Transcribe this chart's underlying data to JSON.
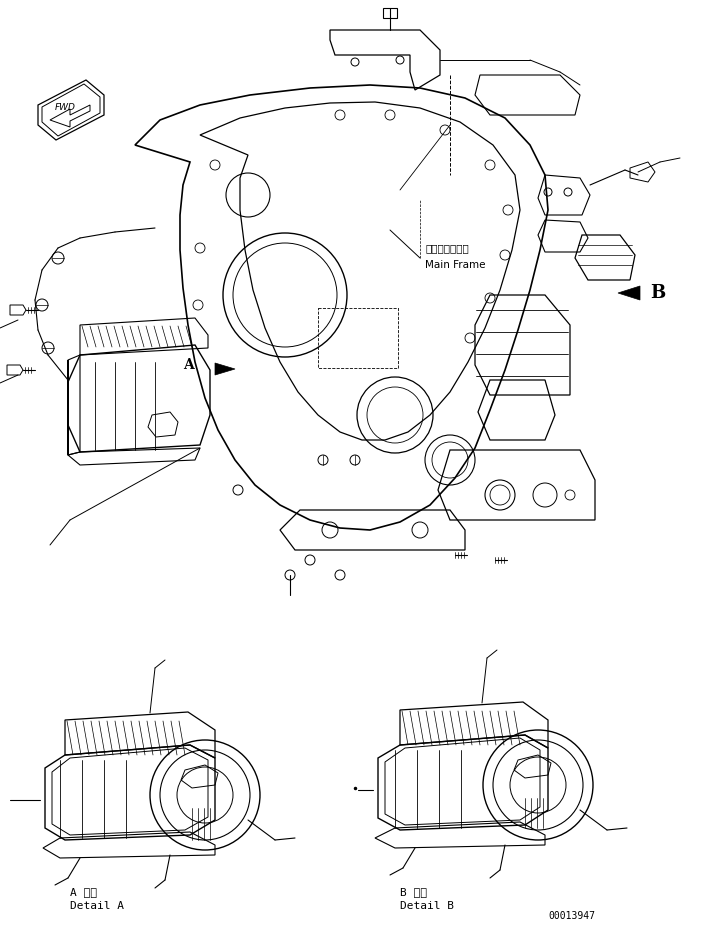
{
  "bg_color": "#ffffff",
  "line_color": "#000000",
  "fig_width": 7.04,
  "fig_height": 9.26,
  "dpi": 100,
  "label_A_japanese": "A 詳細",
  "label_A_english": "Detail A",
  "label_B_japanese": "B 詳細",
  "label_B_english": "Detail B",
  "main_frame_japanese": "メインフレーム",
  "main_frame_english": "Main Frame",
  "part_number": "00013947",
  "fwd_label": "FWD"
}
